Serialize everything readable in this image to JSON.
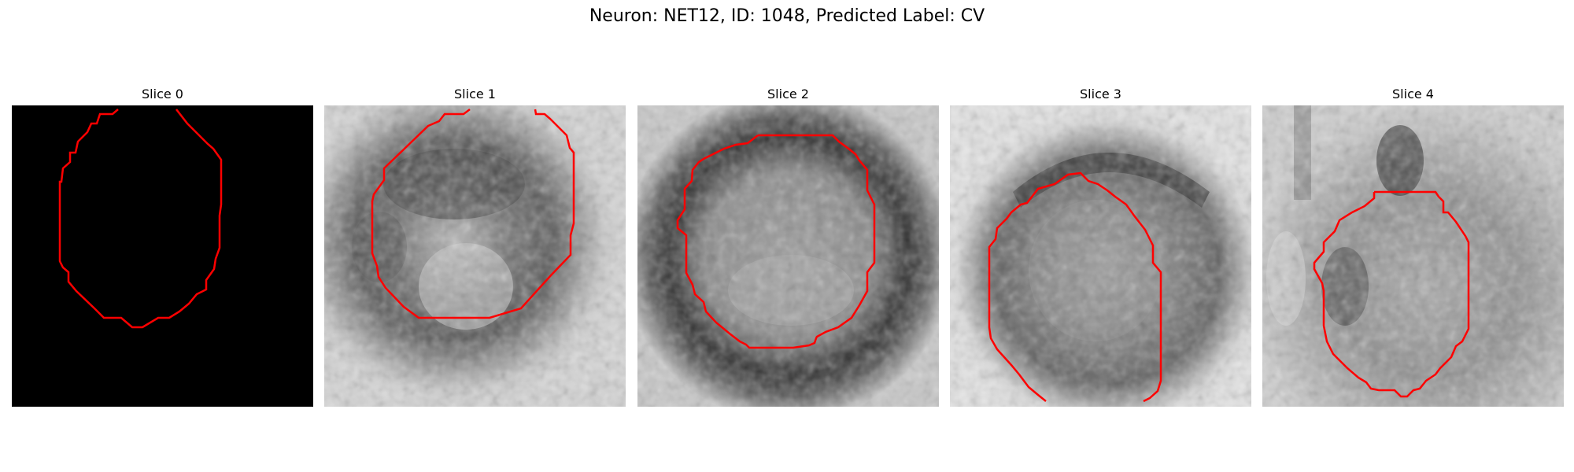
{
  "title": "Neuron: NET12, ID: 1048, Predicted Label: CV",
  "contour_color": "#ff0000",
  "panels": [
    {
      "label": "Slice 0",
      "image": "empty-black-slice"
    },
    {
      "label": "Slice 1",
      "image": "em-grayscale-slice"
    },
    {
      "label": "Slice 2",
      "image": "em-grayscale-slice"
    },
    {
      "label": "Slice 3",
      "image": "em-grayscale-slice"
    },
    {
      "label": "Slice 4",
      "image": "em-grayscale-slice"
    }
  ]
}
